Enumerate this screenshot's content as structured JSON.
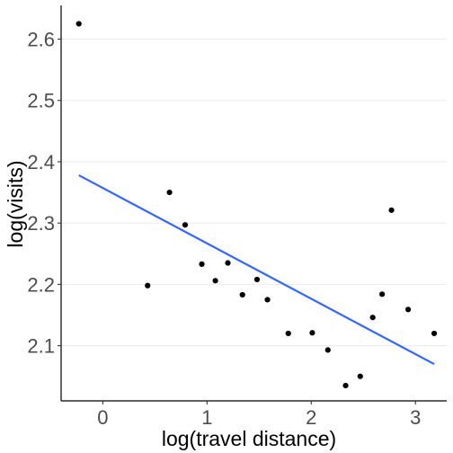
{
  "chart_data": {
    "type": "scatter",
    "title": "",
    "xlabel": "log(travel distance)",
    "ylabel": "log(visits)",
    "xlim": [
      -0.4,
      3.3
    ],
    "ylim": [
      2.01,
      2.655
    ],
    "x_ticks": [
      0,
      1,
      2,
      3
    ],
    "y_ticks": [
      2.1,
      2.2,
      2.3,
      2.4,
      2.5,
      2.6
    ],
    "y_tick_labels": [
      "2.1",
      "2.2",
      "2.3",
      "2.4",
      "2.5",
      "2.6"
    ],
    "x_tick_labels": [
      "0",
      "1",
      "2",
      "3"
    ],
    "grid": "horizontal",
    "points": [
      {
        "x": -0.23,
        "y": 2.625
      },
      {
        "x": 0.43,
        "y": 2.198
      },
      {
        "x": 0.64,
        "y": 2.35
      },
      {
        "x": 0.79,
        "y": 2.297
      },
      {
        "x": 0.95,
        "y": 2.233
      },
      {
        "x": 1.08,
        "y": 2.206
      },
      {
        "x": 1.2,
        "y": 2.235
      },
      {
        "x": 1.34,
        "y": 2.183
      },
      {
        "x": 1.48,
        "y": 2.208
      },
      {
        "x": 1.58,
        "y": 2.175
      },
      {
        "x": 1.78,
        "y": 2.12
      },
      {
        "x": 2.01,
        "y": 2.121
      },
      {
        "x": 2.16,
        "y": 2.093
      },
      {
        "x": 2.33,
        "y": 2.035
      },
      {
        "x": 2.47,
        "y": 2.05
      },
      {
        "x": 2.59,
        "y": 2.146
      },
      {
        "x": 2.68,
        "y": 2.184
      },
      {
        "x": 2.77,
        "y": 2.321
      },
      {
        "x": 2.93,
        "y": 2.159
      },
      {
        "x": 3.18,
        "y": 2.12
      }
    ],
    "trend_line": {
      "x": [
        -0.23,
        3.18
      ],
      "y": [
        2.378,
        2.07
      ],
      "color": "#3366ff"
    },
    "point_color": "#000000"
  }
}
